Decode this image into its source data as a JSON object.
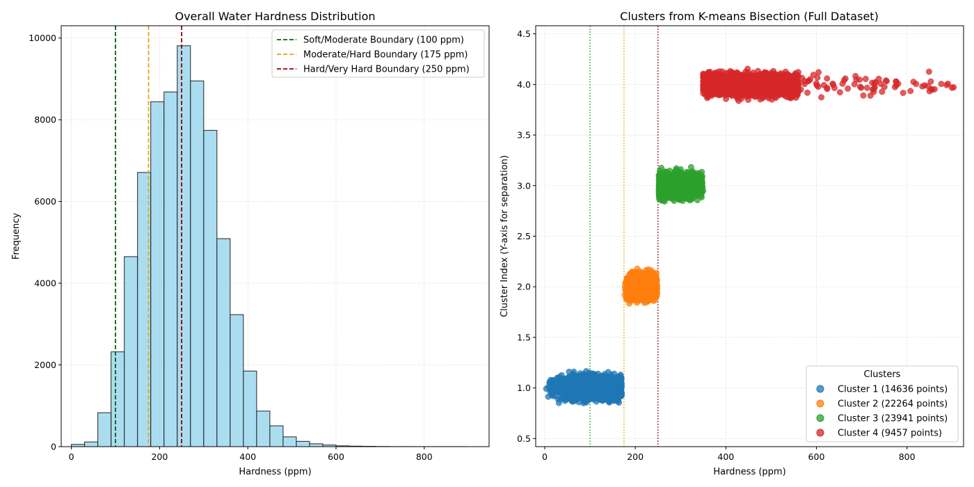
{
  "chart_data": [
    {
      "type": "bar",
      "title": "Overall Water Hardness Distribution",
      "xlabel": "Hardness (ppm)",
      "ylabel": "Frequency",
      "xlim": [
        -23,
        947
      ],
      "ylim": [
        0,
        10300
      ],
      "xticks": [
        0,
        200,
        400,
        600,
        800
      ],
      "yticks": [
        0,
        2000,
        4000,
        6000,
        8000,
        10000
      ],
      "grid": true,
      "legend_position": "top-right",
      "bar_color": "#87ceeb",
      "bin_width": 30,
      "bin_edges_start": 0,
      "values": [
        55,
        115,
        830,
        2320,
        4650,
        6710,
        8440,
        8680,
        9810,
        8950,
        7740,
        5090,
        3230,
        1850,
        870,
        510,
        240,
        130,
        70,
        40,
        20,
        12,
        8,
        4,
        2,
        2,
        1,
        1,
        1,
        1
      ],
      "reference_lines": [
        {
          "x": 100,
          "label": "Soft/Moderate Boundary (100 ppm)",
          "color": "#006400"
        },
        {
          "x": 175,
          "label": "Moderate/Hard Boundary (175 ppm)",
          "color": "#e8a317"
        },
        {
          "x": 250,
          "label": "Hard/Very Hard Boundary (250 ppm)",
          "color": "#8b0000"
        }
      ]
    },
    {
      "type": "scatter",
      "title": "Clusters from K-means Bisection (Full Dataset)",
      "xlabel": "Hardness (ppm)",
      "ylabel": "Cluster Index (Y-axis for separation)",
      "xlim": [
        -20,
        925
      ],
      "ylim": [
        0.42,
        4.58
      ],
      "xticks": [
        0,
        200,
        400,
        600,
        800
      ],
      "yticks": [
        0.5,
        1.0,
        1.5,
        2.0,
        2.5,
        3.0,
        3.5,
        4.0,
        4.5
      ],
      "grid": true,
      "legend_title": "Clusters",
      "legend_position": "lower-right",
      "reference_lines": [
        {
          "x": 100,
          "color": "#2ca02c"
        },
        {
          "x": 175,
          "color": "#e8a317"
        },
        {
          "x": 250,
          "color": "#8b0000"
        }
      ],
      "series": [
        {
          "name": "Cluster 1 (14636 points)",
          "color": "#1f77b4",
          "y_center": 1.0,
          "x_range": [
            3,
            175
          ],
          "x_core": [
            60,
            170
          ],
          "y_spread": 0.36
        },
        {
          "name": "Cluster 2 (22264 points)",
          "color": "#ff7f0e",
          "y_center": 2.0,
          "x_range": [
            175,
            250
          ],
          "x_core": [
            180,
            248
          ],
          "y_spread": 0.38
        },
        {
          "name": "Cluster 3 (23941 points)",
          "color": "#2ca02c",
          "y_center": 3.0,
          "x_range": [
            250,
            350
          ],
          "x_core": [
            252,
            348
          ],
          "y_spread": 0.38
        },
        {
          "name": "Cluster 4 (9457 points)",
          "color": "#d62728",
          "y_center": 4.0,
          "x_range": [
            350,
            905
          ],
          "x_core": [
            355,
            560
          ],
          "y_spread": 0.36
        }
      ]
    }
  ]
}
